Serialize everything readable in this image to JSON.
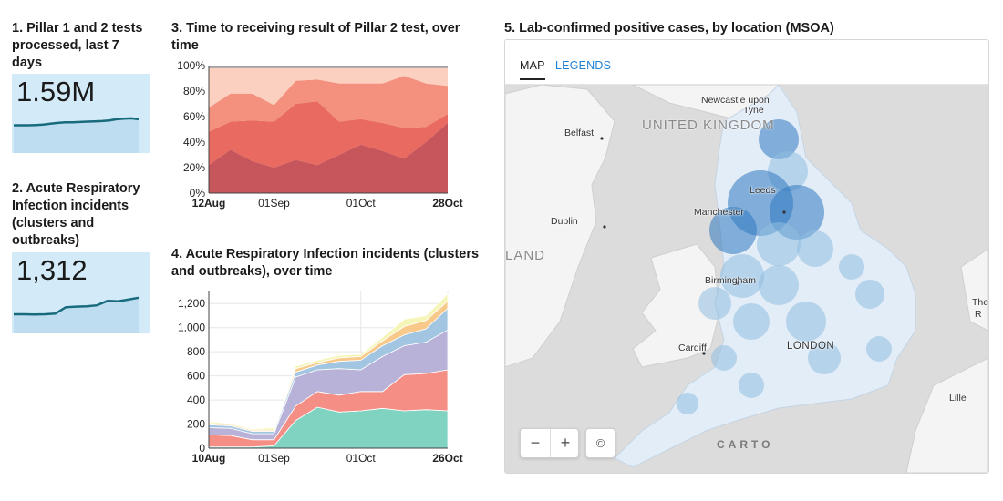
{
  "kpis": [
    {
      "title_lines": [
        "1. Pillar 1 and 2 tests",
        "processed, last 7",
        "days"
      ],
      "value": "1.59M"
    },
    {
      "title_lines": [
        "2. Acute Respiratory",
        "Infection incidents",
        "(clusters and",
        "outbreaks)"
      ],
      "value": "1,312"
    }
  ],
  "chart3": {
    "title_lines": [
      "3. Time to receiving result of Pillar 2 test, over",
      "time"
    ]
  },
  "chart4": {
    "title_lines": [
      "4. Acute Respiratory Infection incidents (clusters",
      "and outbreaks), over time"
    ]
  },
  "map": {
    "title": "5. Lab-confirmed positive cases, by location (MSOA)",
    "tabs": {
      "map": "MAP",
      "legends": "LEGENDS"
    },
    "labels": {
      "newcastle_line1": "Newcastle upon",
      "newcastle_line2": "Tyne",
      "uk": "UNITED KINGDOM",
      "belfast": "Belfast",
      "leeds": "Leeds",
      "manchester": "Manchester",
      "dublin": "Dublin",
      "land": "LAND",
      "birmingham": "Birmingham",
      "cardiff": "Cardiff",
      "london": "LONDON",
      "the": "The",
      "r": "R",
      "lille": "Lille",
      "carto": "CARTO"
    },
    "zoom_out": "−",
    "zoom_in": "+",
    "attribution": "©",
    "colors": {
      "water": "#dcdcdc",
      "land": "#f4f4f4",
      "low": "#e2edf8",
      "mid": "#8fbde0",
      "high": "#2f78c0"
    }
  },
  "chart_data": [
    {
      "type": "line",
      "id": "kpi1_sparkline",
      "values": [
        0.5,
        0.5,
        0.5,
        0.51,
        0.52,
        0.55,
        0.58,
        0.6,
        0.6,
        0.61,
        0.62,
        0.63,
        0.64,
        0.66,
        0.7,
        0.72,
        0.73,
        0.7
      ]
    },
    {
      "type": "line",
      "id": "kpi2_sparkline",
      "values": [
        0.2,
        0.2,
        0.19,
        0.2,
        0.22,
        0.42,
        0.44,
        0.45,
        0.48,
        0.62,
        0.61,
        0.66,
        0.72
      ]
    },
    {
      "type": "area",
      "id": "chart3",
      "stacked": "percent",
      "x": [
        "12Aug",
        "19Aug",
        "26Aug",
        "01Sep",
        "08Sep",
        "15Sep",
        "22Sep",
        "01Oct",
        "08Oct",
        "15Oct",
        "22Oct",
        "28Oct"
      ],
      "x_tick_labels": [
        "12Aug",
        "01Sep",
        "01Oct",
        "28Oct"
      ],
      "series": [
        {
          "color": "#c6555c",
          "values": [
            22,
            34,
            25,
            20,
            26,
            22,
            30,
            38,
            33,
            27,
            40,
            55
          ]
        },
        {
          "color": "#e86a60",
          "values": [
            26,
            22,
            32,
            36,
            44,
            50,
            26,
            20,
            22,
            24,
            12,
            7
          ]
        },
        {
          "color": "#f3907e",
          "values": [
            19,
            22,
            21,
            13,
            18,
            17,
            30,
            28,
            31,
            41,
            34,
            22
          ]
        },
        {
          "color": "#fbd0c0",
          "values": [
            31,
            20,
            20,
            29,
            10,
            9,
            12,
            12,
            12,
            6,
            12,
            14
          ]
        },
        {
          "color": "#a0a0a0",
          "values": [
            2,
            2,
            2,
            2,
            2,
            2,
            2,
            2,
            2,
            2,
            2,
            2
          ]
        }
      ],
      "y_ticks": [
        "0%",
        "20%",
        "40%",
        "60%",
        "80%",
        "100%"
      ],
      "ylim": [
        0,
        100
      ]
    },
    {
      "type": "area",
      "id": "chart4",
      "stacked": true,
      "x": [
        "10Aug",
        "17Aug",
        "24Aug",
        "01Sep",
        "08Sep",
        "15Sep",
        "22Sep",
        "01Oct",
        "08Oct",
        "15Oct",
        "22Oct",
        "26Oct"
      ],
      "x_tick_labels": [
        "10Aug",
        "01Sep",
        "01Oct",
        "26Oct"
      ],
      "series": [
        {
          "color": "#7fd3c0",
          "values": [
            10,
            10,
            10,
            20,
            230,
            340,
            300,
            310,
            330,
            310,
            320,
            310
          ]
        },
        {
          "color": "#f58f86",
          "values": [
            100,
            95,
            60,
            50,
            120,
            130,
            140,
            160,
            140,
            300,
            300,
            340
          ]
        },
        {
          "color": "#b9b2d8",
          "values": [
            60,
            60,
            50,
            50,
            240,
            180,
            220,
            180,
            290,
            240,
            260,
            330
          ]
        },
        {
          "color": "#a2c6e2",
          "values": [
            25,
            20,
            20,
            20,
            40,
            40,
            60,
            80,
            90,
            90,
            110,
            180
          ]
        },
        {
          "color": "#f7c98a",
          "values": [
            10,
            10,
            10,
            10,
            30,
            20,
            30,
            30,
            40,
            70,
            70,
            60
          ]
        },
        {
          "color": "#f6f5b8",
          "values": [
            15,
            10,
            10,
            20,
            20,
            20,
            20,
            20,
            30,
            60,
            40,
            60
          ]
        }
      ],
      "y_ticks": [
        "0",
        "200",
        "400",
        "600",
        "800",
        "1,000",
        "1,200"
      ],
      "ylim": [
        0,
        1300
      ]
    }
  ]
}
